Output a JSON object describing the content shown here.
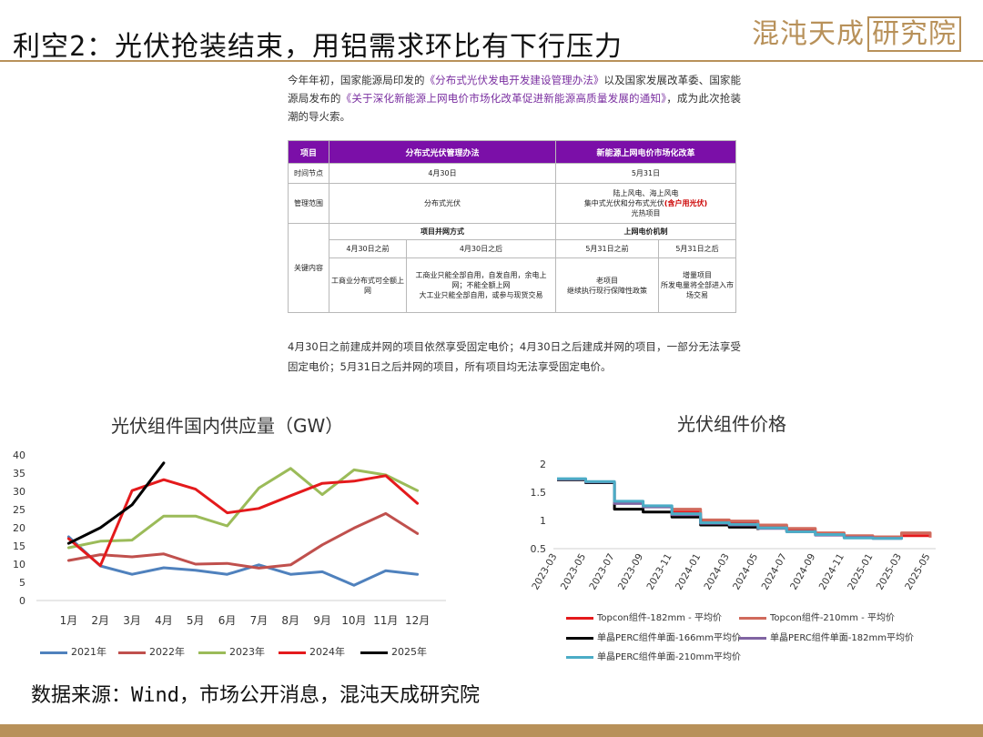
{
  "slide": {
    "title": "利空2：光伏抢装结束，用铝需求环比有下行压力",
    "logo_main": "混沌天成",
    "logo_box": "研究院",
    "source": "数据来源：Wind，市场公开消息，混沌天成研究院"
  },
  "intro": {
    "p1_a": "今年年初，国家能源局印发的",
    "p1_link1": "《分布式光伏发电开发建设管理办法》",
    "p1_b": "以及国家发展改革委、国家能源局发布的",
    "p1_link2": "《关于深化新能源上网电价市场化改革促进新能源高质量发展的通知》",
    "p1_c": "，成为此次抢装潮的导火索。"
  },
  "policy_table": {
    "head_item": "项目",
    "head_col1": "分布式光伏管理办法",
    "head_col2": "新能源上网电价市场化改革",
    "row_time_label": "时间节点",
    "row_time_col1": "4月30日",
    "row_time_col2": "5月31日",
    "row_scope_label": "管理范围",
    "row_scope_col1": "分布式光伏",
    "row_scope_col2_l1": "陆上风电、海上风电",
    "row_scope_col2_l2": "集中式光伏和分布式光伏",
    "row_scope_col2_red": "(含户用光伏)",
    "row_scope_col2_l3": "光热项目",
    "row_key_label": "关键内容",
    "key_sub1": "项目并网方式",
    "key_sub2": "上网电价机制",
    "key_before1": "4月30日之前",
    "key_after1": "4月30日之后",
    "key_before2": "5月31日之前",
    "key_after2": "5月31日之后",
    "key_c1": "工商业分布式可全额上网",
    "key_c2_l1": "工商业只能全部自用，自发自用，余电上网；不能全额上网",
    "key_c2_l2": "大工业只能全部自用，或参与现货交易",
    "key_c3_l1": "老项目",
    "key_c3_l2": "继续执行现行保障性政策",
    "key_c4_l1": "增量项目",
    "key_c4_l2": "所发电量将全部进入市场交易"
  },
  "summary": "4月30日之前建成并网的项目依然享受固定电价；4月30日之后建成并网的项目，一部分无法享受固定电价；5月31日之后并网的项目，所有项目均无法享受固定电价。",
  "chart_data": [
    {
      "type": "line",
      "title": "光伏组件国内供应量（GW）",
      "categories": [
        "1月",
        "2月",
        "3月",
        "4月",
        "5月",
        "6月",
        "7月",
        "8月",
        "9月",
        "10月",
        "11月",
        "12月"
      ],
      "ylim": [
        0,
        40
      ],
      "yticks": [
        0,
        5,
        10,
        15,
        20,
        25,
        30,
        35,
        40
      ],
      "legend_position": "bottom",
      "series": [
        {
          "name": "2021年",
          "color": "#4f81bd",
          "values": [
            17.5,
            9.5,
            7.2,
            9.0,
            8.3,
            7.2,
            9.8,
            7.2,
            7.9,
            4.2,
            8.2,
            7.2
          ]
        },
        {
          "name": "2022年",
          "color": "#c0504d",
          "values": [
            11.0,
            12.6,
            12.0,
            12.8,
            10.0,
            10.2,
            8.9,
            9.8,
            15.3,
            19.9,
            23.9,
            18.4
          ]
        },
        {
          "name": "2023年",
          "color": "#9bbb59",
          "values": [
            14.5,
            16.3,
            16.6,
            23.2,
            23.2,
            20.5,
            30.9,
            36.3,
            29.1,
            35.9,
            34.5,
            30.2
          ]
        },
        {
          "name": "2024年",
          "color": "#e41a1c",
          "values": [
            17.0,
            9.6,
            30.2,
            33.2,
            30.6,
            24.1,
            25.3,
            28.8,
            32.2,
            32.8,
            34.3,
            26.7
          ]
        },
        {
          "name": "2025年",
          "color": "#000000",
          "values": [
            15.7,
            20.0,
            26.3,
            37.8,
            null,
            null,
            null,
            null,
            null,
            null,
            null,
            null
          ]
        }
      ]
    },
    {
      "type": "line",
      "title": "光伏组件价格",
      "x": [
        "2023-03",
        "2023-05",
        "2023-07",
        "2023-09",
        "2023-11",
        "2024-01",
        "2024-03",
        "2024-05",
        "2024-07",
        "2024-09",
        "2024-11",
        "2025-01",
        "2025-03",
        "2025-05"
      ],
      "ylim": [
        0.5,
        2
      ],
      "yticks": [
        0.5,
        1,
        1.5,
        2
      ],
      "legend_position": "bottom",
      "series": [
        {
          "name": "Topcon组件-182mm - 平均价",
          "color": "#e41a1c",
          "values": [
            null,
            null,
            null,
            null,
            1.15,
            1.0,
            0.97,
            0.9,
            0.82,
            0.77,
            0.71,
            0.7,
            0.73,
            0.7
          ]
        },
        {
          "name": "Topcon组件-210mm - 平均价",
          "color": "#d06a5c",
          "values": [
            null,
            null,
            null,
            null,
            1.2,
            1.01,
            0.99,
            0.92,
            0.86,
            0.78,
            0.73,
            0.71,
            0.78,
            0.71
          ]
        },
        {
          "name": "单晶PERC组件单面-166mm平均价",
          "color": "#000000",
          "values": [
            1.72,
            1.67,
            1.2,
            1.15,
            1.06,
            0.92,
            0.88,
            0.83,
            null,
            null,
            null,
            null,
            null,
            null
          ]
        },
        {
          "name": "单晶PERC组件单面-182mm平均价",
          "color": "#8064a2",
          "values": [
            1.73,
            1.68,
            1.3,
            1.24,
            1.1,
            0.95,
            0.92,
            0.86,
            0.8,
            0.74,
            0.7,
            0.68,
            0.7,
            null
          ]
        },
        {
          "name": "单晶PERC组件单面-210mm平均价",
          "color": "#4bacc6",
          "values": [
            1.74,
            1.69,
            1.34,
            1.26,
            1.12,
            0.96,
            0.93,
            0.87,
            0.8,
            0.75,
            0.69,
            0.68,
            0.71,
            null
          ]
        }
      ]
    }
  ]
}
